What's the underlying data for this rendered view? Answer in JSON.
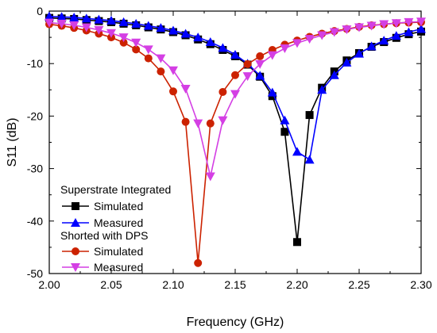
{
  "chart_data": {
    "type": "line",
    "xlabel": "Frequency (GHz)",
    "ylabel": "S11 (dB)",
    "xlim": [
      2.0,
      2.3
    ],
    "ylim": [
      -50,
      0
    ],
    "xticks": [
      2.0,
      2.05,
      2.1,
      2.15,
      2.2,
      2.25,
      2.3
    ],
    "xtick_labels": [
      "2.00",
      "2.05",
      "2.10",
      "2.15",
      "2.20",
      "2.25",
      "2.30"
    ],
    "yticks": [
      0,
      -10,
      -20,
      -30,
      -40,
      -50
    ],
    "ytick_labels": [
      "0",
      "-10",
      "-20",
      "-30",
      "-40",
      "-50"
    ],
    "grid": false,
    "legend_placement": "bottom-left",
    "legend_groups": [
      {
        "title": "Superstrate Integrated",
        "series": [
          0,
          1
        ]
      },
      {
        "title": "Shorted with DPS",
        "series": [
          2,
          3
        ]
      }
    ],
    "series": [
      {
        "name": "Simulated",
        "color": "#000000",
        "marker": "square",
        "x": [
          2.0,
          2.01,
          2.02,
          2.03,
          2.04,
          2.05,
          2.06,
          2.07,
          2.08,
          2.09,
          2.1,
          2.11,
          2.12,
          2.13,
          2.14,
          2.15,
          2.16,
          2.17,
          2.18,
          2.19,
          2.2,
          2.21,
          2.22,
          2.23,
          2.24,
          2.25,
          2.26,
          2.27,
          2.28,
          2.29,
          2.3
        ],
        "y": [
          -1.3,
          -1.4,
          -1.5,
          -1.7,
          -1.9,
          -2.1,
          -2.4,
          -2.7,
          -3.1,
          -3.5,
          -4.0,
          -4.6,
          -5.4,
          -6.3,
          -7.4,
          -8.6,
          -10.2,
          -12.5,
          -16.2,
          -23.0,
          -44.0,
          -19.8,
          -14.6,
          -11.5,
          -9.4,
          -8.0,
          -6.8,
          -5.9,
          -5.1,
          -4.4,
          -3.9
        ]
      },
      {
        "name": "Measured",
        "color": "#0000ff",
        "marker": "triangle-up",
        "x": [
          2.0,
          2.01,
          2.02,
          2.03,
          2.04,
          2.05,
          2.06,
          2.07,
          2.08,
          2.09,
          2.1,
          2.11,
          2.12,
          2.13,
          2.14,
          2.15,
          2.16,
          2.17,
          2.18,
          2.19,
          2.2,
          2.21,
          2.22,
          2.23,
          2.24,
          2.25,
          2.26,
          2.27,
          2.28,
          2.29,
          2.3
        ],
        "y": [
          -1.0,
          -1.1,
          -1.2,
          -1.4,
          -1.6,
          -1.8,
          -2.1,
          -2.4,
          -2.8,
          -3.2,
          -3.7,
          -4.3,
          -5.0,
          -5.9,
          -7.0,
          -8.3,
          -10.0,
          -12.3,
          -15.5,
          -20.8,
          -26.8,
          -28.3,
          -15.0,
          -12.2,
          -9.8,
          -8.1,
          -6.7,
          -5.6,
          -4.7,
          -4.0,
          -3.4
        ]
      },
      {
        "name": "Simulated",
        "color": "#cc2200",
        "marker": "circle",
        "x": [
          2.0,
          2.01,
          2.02,
          2.03,
          2.04,
          2.05,
          2.06,
          2.07,
          2.08,
          2.09,
          2.1,
          2.11,
          2.12,
          2.13,
          2.14,
          2.15,
          2.16,
          2.17,
          2.18,
          2.19,
          2.2,
          2.21,
          2.22,
          2.23,
          2.24,
          2.25,
          2.26,
          2.27,
          2.28,
          2.29,
          2.3
        ],
        "y": [
          -2.5,
          -2.8,
          -3.2,
          -3.7,
          -4.3,
          -5.0,
          -6.0,
          -7.3,
          -9.0,
          -11.5,
          -15.3,
          -21.1,
          -48.0,
          -21.4,
          -15.4,
          -12.2,
          -10.1,
          -8.6,
          -7.4,
          -6.4,
          -5.6,
          -4.9,
          -4.3,
          -3.8,
          -3.4,
          -3.0,
          -2.7,
          -2.5,
          -2.3,
          -2.2,
          -2.1
        ]
      },
      {
        "name": "Measured",
        "color": "#d43fe4",
        "marker": "triangle-down",
        "x": [
          2.0,
          2.01,
          2.02,
          2.03,
          2.04,
          2.05,
          2.06,
          2.07,
          2.08,
          2.09,
          2.1,
          2.11,
          2.12,
          2.13,
          2.14,
          2.15,
          2.16,
          2.17,
          2.18,
          2.19,
          2.2,
          2.21,
          2.22,
          2.23,
          2.24,
          2.25,
          2.26,
          2.27,
          2.28,
          2.29,
          2.3
        ],
        "y": [
          -2.2,
          -2.4,
          -2.7,
          -3.1,
          -3.6,
          -4.2,
          -5.0,
          -6.0,
          -7.3,
          -9.0,
          -11.3,
          -14.8,
          -21.4,
          -31.5,
          -20.8,
          -15.8,
          -12.4,
          -10.1,
          -8.4,
          -7.1,
          -6.1,
          -5.3,
          -4.6,
          -4.0,
          -3.5,
          -3.1,
          -2.8,
          -2.5,
          -2.3,
          -2.1,
          -2.0
        ]
      }
    ]
  }
}
